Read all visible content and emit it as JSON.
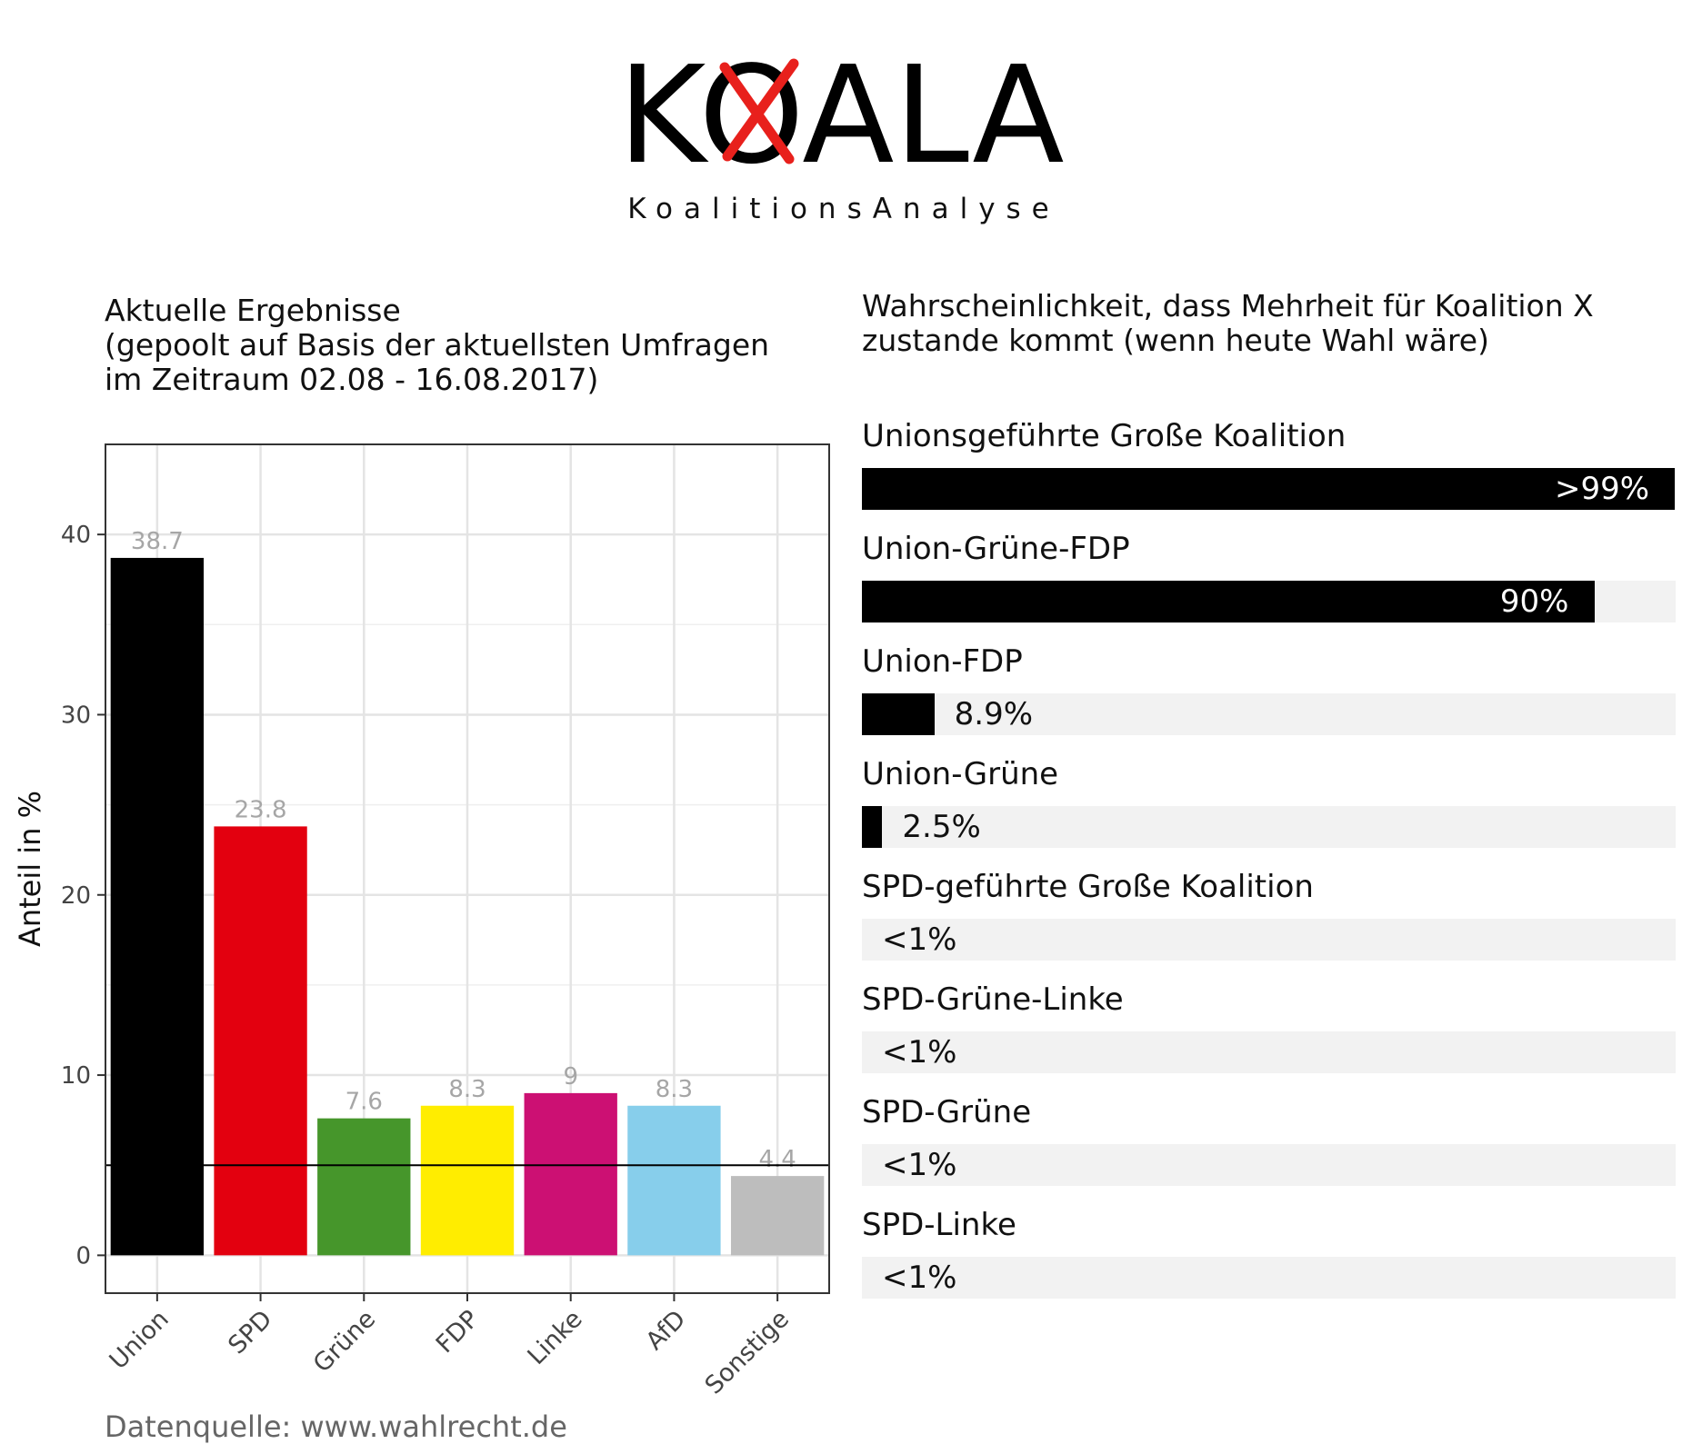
{
  "header": {
    "logo_text": "KOALA",
    "tagline": "KoalitionsAnalyse"
  },
  "left_title": "Aktuelle Ergebnisse\n(gepoolt auf Basis der aktuellsten Umfragen\n im Zeitraum 02.08 - 16.08.2017)",
  "right_title": "Wahrscheinlichkeit, dass Mehrheit für Koalition X\nzustande kommt (wenn heute Wahl wäre)",
  "source": "Datenquelle: www.wahlrecht.de",
  "colors": {
    "accent_cross": "#e8201c",
    "bar_track": "#f2f2f2",
    "value_label": "#a6a6a6"
  },
  "chart_data": [
    {
      "type": "bar",
      "title": "Aktuelle Ergebnisse (gepoolt auf Basis der aktuellsten Umfragen im Zeitraum 02.08 - 16.08.2017)",
      "xlabel": "",
      "ylabel": "Anteil in %",
      "ylim": [
        -2.1,
        45
      ],
      "yticks": [
        0,
        10,
        20,
        30,
        40
      ],
      "grid": true,
      "threshold_line": 5,
      "categories": [
        "Union",
        "SPD",
        "Grüne",
        "FDP",
        "Linke",
        "AfD",
        "Sonstige"
      ],
      "values": [
        38.7,
        23.8,
        7.6,
        8.3,
        9,
        8.3,
        4.4
      ],
      "value_labels": [
        "38.7",
        "23.8",
        "7.6",
        "8.3",
        "9",
        "8.3",
        "4.4"
      ],
      "colors": [
        "#000000",
        "#e3000f",
        "#46962b",
        "#ffed00",
        "#cc1073",
        "#87ceeb",
        "#bdbdbd"
      ]
    },
    {
      "type": "bar",
      "orientation": "horizontal",
      "title": "Wahrscheinlichkeit, dass Mehrheit für Koalition X zustande kommt (wenn heute Wahl wäre)",
      "xlim": [
        0,
        100
      ],
      "categories": [
        "Unionsgeführte Große Koalition",
        "Union-Grüne-FDP",
        "Union-FDP",
        "Union-Grüne",
        "SPD-geführte Große Koalition",
        "SPD-Grüne-Linke",
        "SPD-Grüne",
        "SPD-Linke"
      ],
      "values": [
        99.9,
        90,
        8.9,
        2.5,
        0,
        0,
        0,
        0
      ],
      "labels": [
        ">99%",
        "90%",
        "8.9%",
        "2.5%",
        "<1%",
        "<1%",
        "<1%",
        "<1%"
      ]
    }
  ]
}
